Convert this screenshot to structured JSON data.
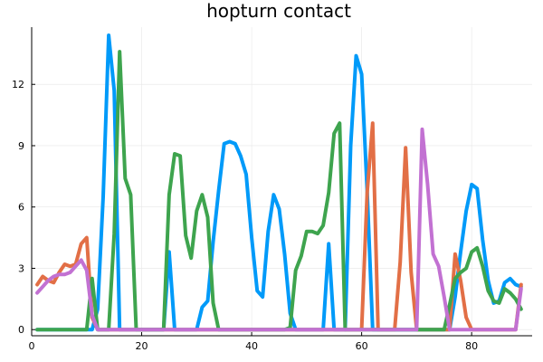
{
  "chart_data": {
    "type": "line",
    "title": "hopturn contact",
    "xlabel": "",
    "ylabel": "",
    "xlim": [
      0,
      91
    ],
    "ylim": [
      -0.3,
      14.8
    ],
    "xticks": [
      0,
      20,
      40,
      60,
      80
    ],
    "yticks": [
      0,
      3,
      6,
      9,
      12
    ],
    "grid": true,
    "legend": "none",
    "series": [
      {
        "color": "#009af9",
        "x": [
          1,
          2,
          3,
          4,
          5,
          6,
          7,
          8,
          9,
          10,
          11,
          12,
          13,
          14,
          15,
          16,
          17,
          18,
          19,
          20,
          21,
          22,
          23,
          24,
          25,
          26,
          27,
          28,
          29,
          30,
          31,
          32,
          33,
          34,
          35,
          36,
          37,
          38,
          39,
          40,
          41,
          42,
          43,
          44,
          45,
          46,
          47,
          48,
          49,
          50,
          51,
          52,
          53,
          54,
          55,
          56,
          57,
          58,
          59,
          60,
          61,
          62,
          63,
          64,
          65,
          66,
          67,
          68,
          69,
          70,
          71,
          72,
          73,
          74,
          75,
          76,
          77,
          78,
          79,
          80,
          81,
          82,
          83,
          84,
          85,
          86,
          87,
          88,
          89
        ],
        "y": [
          0,
          0,
          0,
          0,
          0,
          0,
          0,
          0,
          0,
          0,
          0,
          1,
          6.5,
          14.4,
          11.7,
          0,
          0,
          0,
          0,
          0,
          0,
          0,
          0,
          0,
          3.8,
          0,
          0,
          0,
          0,
          0,
          1.1,
          1.4,
          4.3,
          6.8,
          9.1,
          9.2,
          9.1,
          8.5,
          7.6,
          4.5,
          1.9,
          1.6,
          4.8,
          6.6,
          5.9,
          3.7,
          0.8,
          0,
          0,
          0,
          0,
          0,
          0,
          4.2,
          0,
          0,
          0,
          9,
          13.4,
          12.5,
          6.8,
          0,
          0,
          0,
          0,
          0,
          0,
          0,
          0,
          0,
          0,
          0,
          0,
          0,
          0,
          0,
          1.6,
          3.8,
          5.8,
          7.1,
          6.9,
          4.4,
          2.4,
          1.3,
          1.4,
          2.3,
          2.5,
          2.2,
          2.1
        ]
      },
      {
        "color": "#e26f46",
        "x": [
          1,
          2,
          3,
          4,
          5,
          6,
          7,
          8,
          9,
          10,
          11,
          12,
          13,
          14,
          15,
          16,
          17,
          18,
          19,
          20,
          21,
          22,
          23,
          24,
          25,
          26,
          27,
          28,
          29,
          30,
          31,
          32,
          33,
          34,
          35,
          36,
          37,
          38,
          39,
          40,
          41,
          42,
          43,
          44,
          45,
          46,
          47,
          48,
          49,
          50,
          51,
          52,
          53,
          54,
          55,
          56,
          57,
          58,
          59,
          60,
          61,
          62,
          63,
          64,
          65,
          66,
          67,
          68,
          69,
          70,
          71,
          72,
          73,
          74,
          75,
          76,
          77,
          78,
          79,
          80,
          81,
          82,
          83,
          84,
          85,
          86,
          87,
          88,
          89
        ],
        "y": [
          2.2,
          2.6,
          2.4,
          2.3,
          2.8,
          3.2,
          3.1,
          3.2,
          4.2,
          4.5,
          0.6,
          0,
          0,
          0,
          0,
          0,
          0,
          0,
          0,
          0,
          0,
          0,
          0,
          0,
          0,
          0,
          0,
          0,
          0,
          0,
          0,
          0,
          0,
          0,
          0,
          0,
          0,
          0,
          0,
          0,
          0,
          0,
          0,
          0,
          0,
          0,
          0,
          0,
          0,
          0,
          0,
          0,
          0,
          0,
          0,
          0,
          0,
          0,
          0,
          0,
          6.7,
          10.1,
          0,
          0,
          0,
          0,
          3.3,
          8.9,
          2.8,
          0,
          0,
          0,
          0,
          0,
          0,
          0,
          3.7,
          2.4,
          0.6,
          0,
          0,
          0,
          0,
          0,
          0,
          0,
          0,
          0,
          2.2
        ]
      },
      {
        "color": "#3ea44e",
        "x": [
          1,
          2,
          3,
          4,
          5,
          6,
          7,
          8,
          9,
          10,
          11,
          12,
          13,
          14,
          15,
          16,
          17,
          18,
          19,
          20,
          21,
          22,
          23,
          24,
          25,
          26,
          27,
          28,
          29,
          30,
          31,
          32,
          33,
          34,
          35,
          36,
          37,
          38,
          39,
          40,
          41,
          42,
          43,
          44,
          45,
          46,
          47,
          48,
          49,
          50,
          51,
          52,
          53,
          54,
          55,
          56,
          57,
          58,
          59,
          60,
          61,
          62,
          63,
          64,
          65,
          66,
          67,
          68,
          69,
          70,
          71,
          72,
          73,
          74,
          75,
          76,
          77,
          78,
          79,
          80,
          81,
          82,
          83,
          84,
          85,
          86,
          87,
          88,
          89
        ],
        "y": [
          0,
          0,
          0,
          0,
          0,
          0,
          0,
          0,
          0,
          0,
          2.5,
          0,
          0,
          0,
          4.7,
          13.6,
          7.4,
          6.6,
          0,
          0,
          0,
          0,
          0,
          0,
          6.6,
          8.6,
          8.5,
          4.6,
          3.5,
          5.8,
          6.6,
          5.5,
          1.3,
          0,
          0,
          0,
          0,
          0,
          0,
          0,
          0,
          0,
          0,
          0,
          0,
          0,
          0.1,
          2.9,
          3.6,
          4.8,
          4.8,
          4.7,
          5.1,
          6.7,
          9.6,
          10.1,
          0,
          0,
          0,
          0,
          0,
          0,
          0,
          0,
          0,
          0,
          0,
          0,
          0,
          0,
          0,
          0,
          0,
          0,
          0,
          1.2,
          2.5,
          2.8,
          3,
          3.8,
          4,
          3.1,
          1.9,
          1.4,
          1.3,
          2,
          1.8,
          1.5,
          1
        ]
      },
      {
        "color": "#c271d2",
        "x": [
          1,
          2,
          3,
          4,
          5,
          6,
          7,
          8,
          9,
          10,
          11,
          12,
          13,
          14,
          15,
          16,
          17,
          18,
          19,
          20,
          21,
          22,
          23,
          24,
          25,
          26,
          27,
          28,
          29,
          30,
          31,
          32,
          33,
          34,
          35,
          36,
          37,
          38,
          39,
          40,
          41,
          42,
          43,
          44,
          45,
          46,
          47,
          48,
          49,
          50,
          51,
          52,
          53,
          54,
          55,
          56,
          57,
          58,
          59,
          60,
          61,
          62,
          63,
          64,
          65,
          66,
          67,
          68,
          69,
          70,
          71,
          72,
          73,
          74,
          75,
          76,
          77,
          78,
          79,
          80,
          81,
          82,
          83,
          84,
          85,
          86,
          87,
          88,
          89
        ],
        "y": [
          1.8,
          2.1,
          2.4,
          2.6,
          2.7,
          2.7,
          2.8,
          3.1,
          3.4,
          2.9,
          0.7,
          0,
          0,
          0,
          0,
          0,
          0,
          0,
          0,
          0,
          0,
          0,
          0,
          0,
          0,
          0,
          0,
          0,
          0,
          0,
          0,
          0,
          0,
          0,
          0,
          0,
          0,
          0,
          0,
          0,
          0,
          0,
          0,
          0,
          0,
          0,
          0,
          0,
          0,
          0,
          0,
          0,
          0,
          0,
          0,
          0,
          0,
          0,
          0,
          0,
          0,
          0,
          0,
          0,
          0,
          0,
          0,
          0,
          0,
          0,
          9.8,
          7.1,
          3.7,
          3.1,
          1.6,
          0,
          0,
          0,
          0,
          0,
          0,
          0,
          0,
          0,
          0,
          0,
          0,
          0,
          2
        ]
      }
    ]
  }
}
